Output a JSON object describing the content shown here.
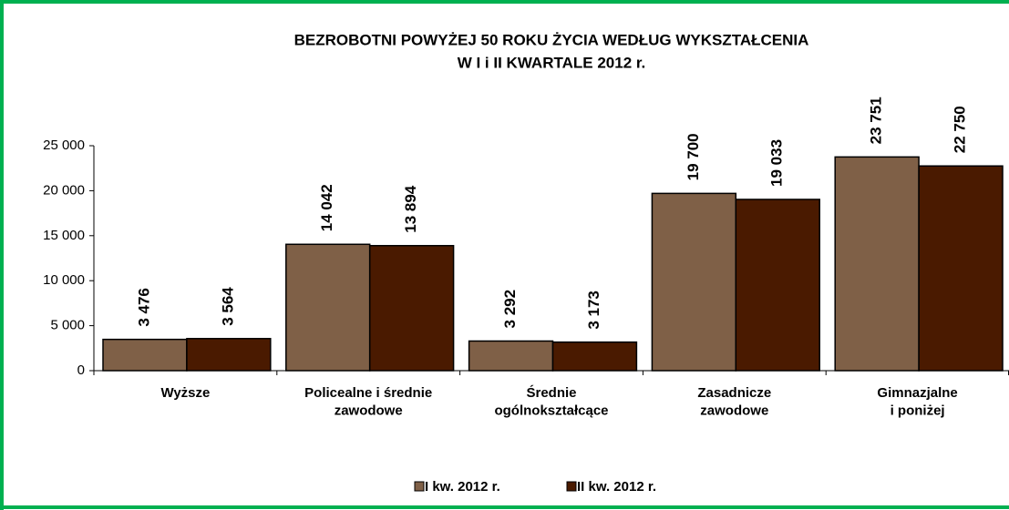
{
  "chart_data": {
    "type": "bar",
    "title": "BEZROBOTNI  POWYŻEJ 50 ROKU  ŻYCIA  WEDŁUG  WYKSZTAŁCENIA",
    "subtitle": "W  I i II KWARTALE  2012 r.",
    "categories": [
      "Wyższe",
      "Policealne i średnie\nzawodowe",
      "Średnie\nogólnokształcące",
      "Zasadnicze\nzawodowe",
      "Gimnazjalne\ni poniżej"
    ],
    "series": [
      {
        "name": "I kw. 2012 r.",
        "color": "#7f6047",
        "values": [
          3476,
          14042,
          3292,
          19700,
          23751
        ],
        "value_labels": [
          "3 476",
          "14 042",
          "3 292",
          "19 700",
          "23 751"
        ]
      },
      {
        "name": "II kw. 2012 r.",
        "color": "#4a1a00",
        "values": [
          3564,
          13894,
          3173,
          19033,
          22750
        ],
        "value_labels": [
          "3 564",
          "13 894",
          "3 173",
          "19 033",
          "22 750"
        ]
      }
    ],
    "ylim": [
      0,
      25000
    ],
    "yticks": [
      0,
      {
        "value": 5000,
        "label": "5 000"
      },
      {
        "value": 10000,
        "label": "10 000"
      },
      {
        "value": 15000,
        "label": "15 000"
      },
      {
        "value": 20000,
        "label": "20 000"
      },
      {
        "value": 25000,
        "label": "25 000"
      }
    ],
    "legend": "bottom"
  }
}
